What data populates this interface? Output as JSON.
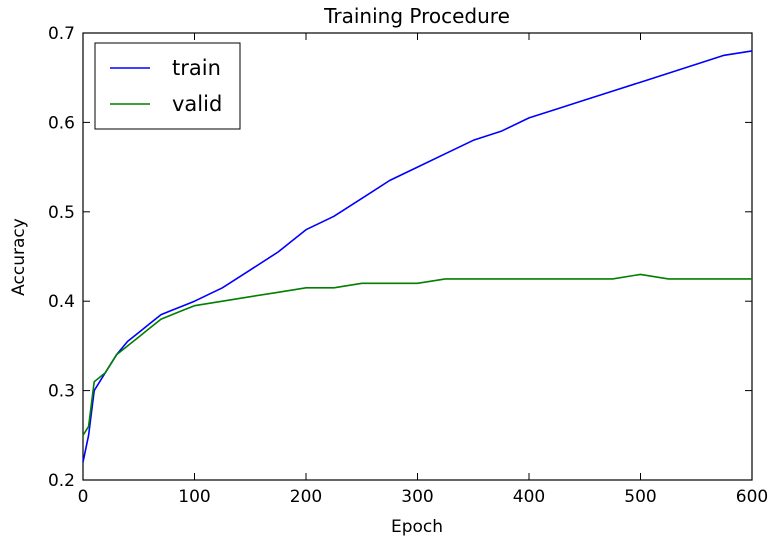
{
  "chart_data": {
    "type": "line",
    "title": "Training Procedure",
    "xlabel": "Epoch",
    "ylabel": "Accuracy",
    "xlim": [
      0,
      600
    ],
    "ylim": [
      0.2,
      0.7
    ],
    "xticks": [
      0,
      100,
      200,
      300,
      400,
      500,
      600
    ],
    "xtick_labels": [
      "0",
      "100",
      "200",
      "300",
      "400",
      "500",
      "600"
    ],
    "yticks": [
      0.2,
      0.3,
      0.4,
      0.5,
      0.6,
      0.7
    ],
    "ytick_labels": [
      "0.2",
      "0.3",
      "0.4",
      "0.5",
      "0.6",
      "0.7"
    ],
    "grid": false,
    "legend_position": "top-left",
    "colors": {
      "train": "#0000ff",
      "valid": "#007f00"
    },
    "x": [
      0,
      5,
      10,
      20,
      30,
      40,
      50,
      60,
      70,
      80,
      90,
      100,
      125,
      150,
      175,
      200,
      225,
      250,
      275,
      300,
      325,
      350,
      375,
      400,
      425,
      450,
      475,
      500,
      525,
      550,
      575,
      600
    ],
    "series": [
      {
        "name": "train",
        "values": [
          0.22,
          0.25,
          0.3,
          0.32,
          0.34,
          0.355,
          0.365,
          0.375,
          0.385,
          0.39,
          0.395,
          0.4,
          0.415,
          0.435,
          0.455,
          0.48,
          0.495,
          0.515,
          0.535,
          0.55,
          0.565,
          0.58,
          0.59,
          0.605,
          0.615,
          0.625,
          0.635,
          0.645,
          0.655,
          0.665,
          0.675,
          0.68
        ]
      },
      {
        "name": "valid",
        "values": [
          0.25,
          0.26,
          0.31,
          0.32,
          0.34,
          0.35,
          0.36,
          0.37,
          0.38,
          0.385,
          0.39,
          0.395,
          0.4,
          0.405,
          0.41,
          0.415,
          0.415,
          0.42,
          0.42,
          0.42,
          0.425,
          0.425,
          0.425,
          0.425,
          0.425,
          0.425,
          0.425,
          0.43,
          0.425,
          0.425,
          0.425,
          0.425
        ]
      }
    ]
  }
}
